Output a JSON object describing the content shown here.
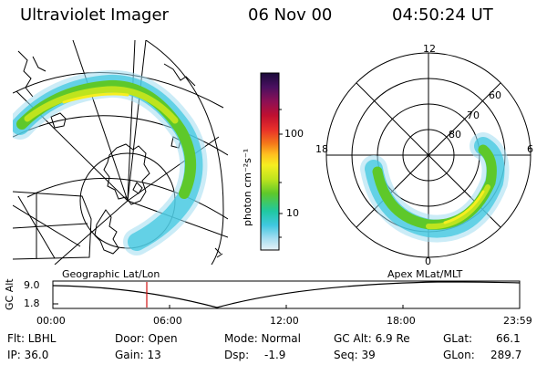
{
  "header": {
    "title": "Ultraviolet Imager",
    "date": "06 Nov 00",
    "time": "04:50:24 UT"
  },
  "colorbar": {
    "unit_label": "photon cm⁻²s⁻¹",
    "tick_labels": [
      "100",
      "10"
    ],
    "colors": [
      "#1a0a3a",
      "#4a1060",
      "#8c1055",
      "#c01030",
      "#e8302a",
      "#f57a1a",
      "#ffc020",
      "#f6ee20",
      "#bee41e",
      "#5ec82a",
      "#20c8a0",
      "#40c8e0",
      "#a0dcf0",
      "#e6f2f8"
    ]
  },
  "left_map": {
    "caption": "Geographic Lat/Lon"
  },
  "right_polar": {
    "caption": "Apex MLat/MLT",
    "lat_labels": [
      "80",
      "70",
      "60"
    ],
    "mlt_labels": [
      "12",
      "18",
      "6",
      "0"
    ]
  },
  "altitude_plot": {
    "ylabel": "GC Alt",
    "ytick_labels": [
      "9.0",
      "1.8"
    ],
    "xtick_labels": [
      "00:00",
      "06:00",
      "12:00",
      "18:00",
      "23:59"
    ],
    "marker_color": "#d01010",
    "marker_time": "04:50"
  },
  "info": {
    "row1": {
      "flt": "Flt: LBHL",
      "door": "Door: Open",
      "mode": "Mode: Normal",
      "gcalt": "GC Alt: 6.9 Re",
      "glat": "GLat:",
      "glat_value": "66.1"
    },
    "row2": {
      "ip": "IP: 36.0",
      "gain": "Gain: 13",
      "dsp": "Dsp:",
      "dsp_value": "-1.9",
      "seq": "Seq: 39",
      "glon": "GLon:",
      "glon_value": "289.7"
    }
  }
}
